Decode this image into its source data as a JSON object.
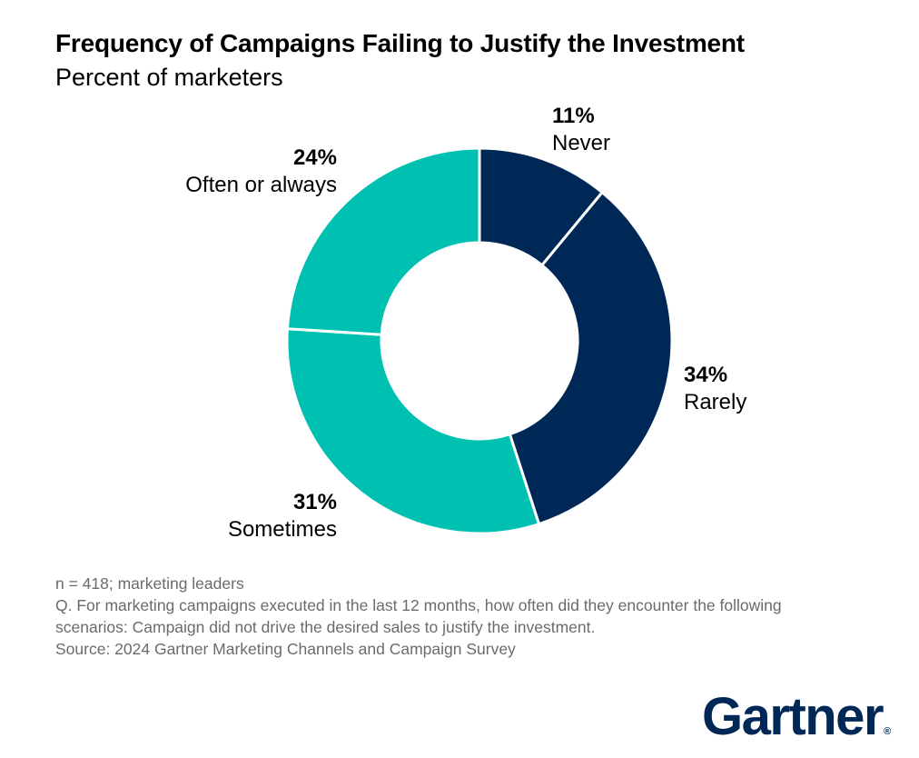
{
  "chart_data": {
    "type": "pie",
    "variant": "donut",
    "title": "Frequency of Campaigns Failing to Justify the Investment",
    "subtitle": "Percent of marketers",
    "unit": "%",
    "slices": [
      {
        "label": "Never",
        "value": 11,
        "display": "11%",
        "color": "#002856"
      },
      {
        "label": "Rarely",
        "value": 34,
        "display": "34%",
        "color": "#002856"
      },
      {
        "label": "Sometimes",
        "value": 31,
        "display": "31%",
        "color": "#00C1B1"
      },
      {
        "label": "Often or always",
        "value": 24,
        "display": "24%",
        "color": "#00C1B1"
      }
    ]
  },
  "footnotes": {
    "n": "n = 418; marketing leaders",
    "question_line1": "Q. For marketing campaigns executed in the last 12 months, how often did they encounter the following",
    "question_line2": "scenarios: Campaign did not drive the desired sales to justify the investment.",
    "source": "Source: 2024 Gartner Marketing Channels and Campaign Survey"
  },
  "brand": {
    "name": "Gartner",
    "registered": "®",
    "color": "#002856"
  }
}
